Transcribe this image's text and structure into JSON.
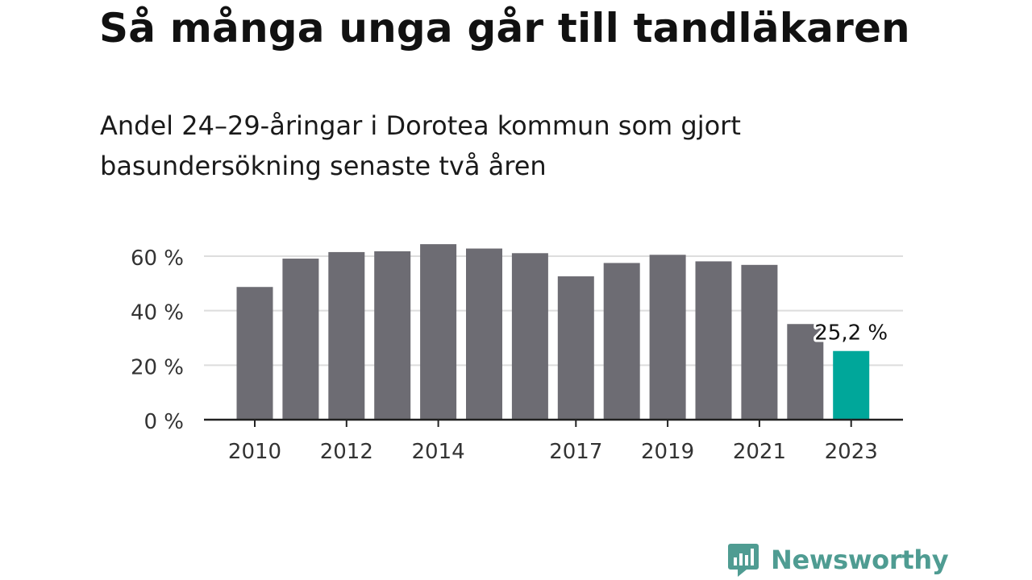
{
  "title": "Så många unga går till tandläkaren",
  "subtitle": "Andel 24–29-åringar i Dorotea kommun som gjort basundersökning senaste två åren",
  "brand": {
    "name": "Newsworthy",
    "icon": "newsworthy-logo-icon",
    "color": "#4f9c92"
  },
  "colors": {
    "bar": "#6d6c73",
    "highlight": "#00a79a",
    "grid": "#dddddd",
    "axis": "#222222"
  },
  "chart_data": {
    "type": "bar",
    "x": [
      2010,
      2011,
      2012,
      2013,
      2014,
      2015,
      2016,
      2017,
      2018,
      2019,
      2020,
      2021,
      2022,
      2023
    ],
    "values": [
      48.7,
      59.1,
      61.5,
      61.8,
      64.4,
      62.8,
      61.1,
      52.6,
      57.5,
      60.5,
      58.1,
      56.8,
      35.1,
      25.2
    ],
    "tick_years": [
      2010,
      2012,
      2014,
      2017,
      2019,
      2021,
      2023
    ],
    "x_tick_labels": [
      "2010",
      "2012",
      "2014",
      "2017",
      "2019",
      "2021",
      "2023"
    ],
    "y_ticks": [
      0,
      20,
      40,
      60
    ],
    "y_tick_labels": [
      "0 %",
      "20 %",
      "40 %",
      "60 %"
    ],
    "ylim": [
      0,
      65
    ],
    "highlight_year": 2023,
    "highlight_label": "25,2 %",
    "grid": true
  }
}
